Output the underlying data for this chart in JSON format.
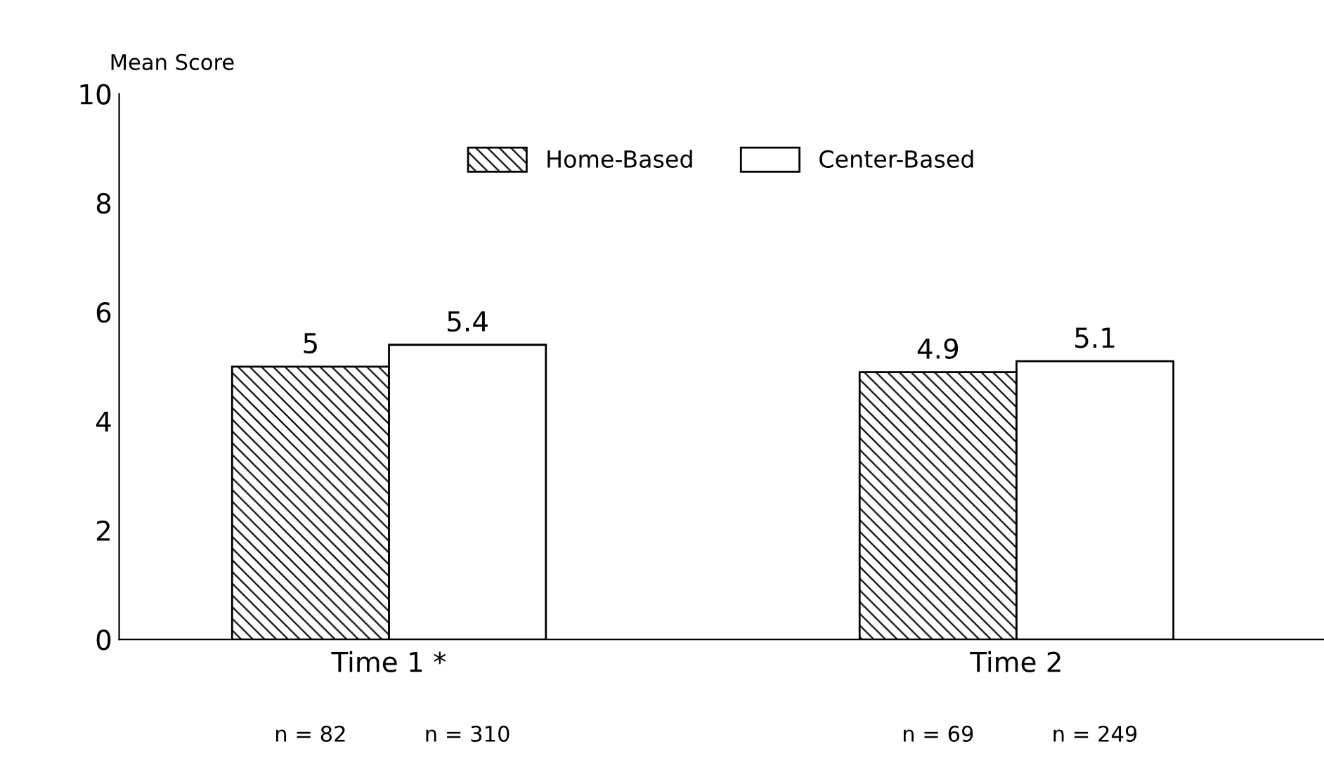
{
  "chart_data": {
    "type": "bar",
    "ylabel": "Mean Score",
    "categories": [
      "Time 1 *",
      "Time 2"
    ],
    "series": [
      {
        "name": "Home-Based",
        "color": "#000000",
        "values": [
          5,
          4.9
        ]
      },
      {
        "name": "Center-Based",
        "color": "#ffffff",
        "values": [
          5.4,
          5.1
        ]
      }
    ],
    "ylim": [
      0,
      10
    ],
    "yticks": [
      0,
      2,
      4,
      6,
      8,
      10
    ],
    "data_labels": true,
    "grid": false,
    "legend": "top",
    "annotations": [
      "n = 82",
      "n = 310",
      "n = 69",
      "n = 249"
    ]
  }
}
